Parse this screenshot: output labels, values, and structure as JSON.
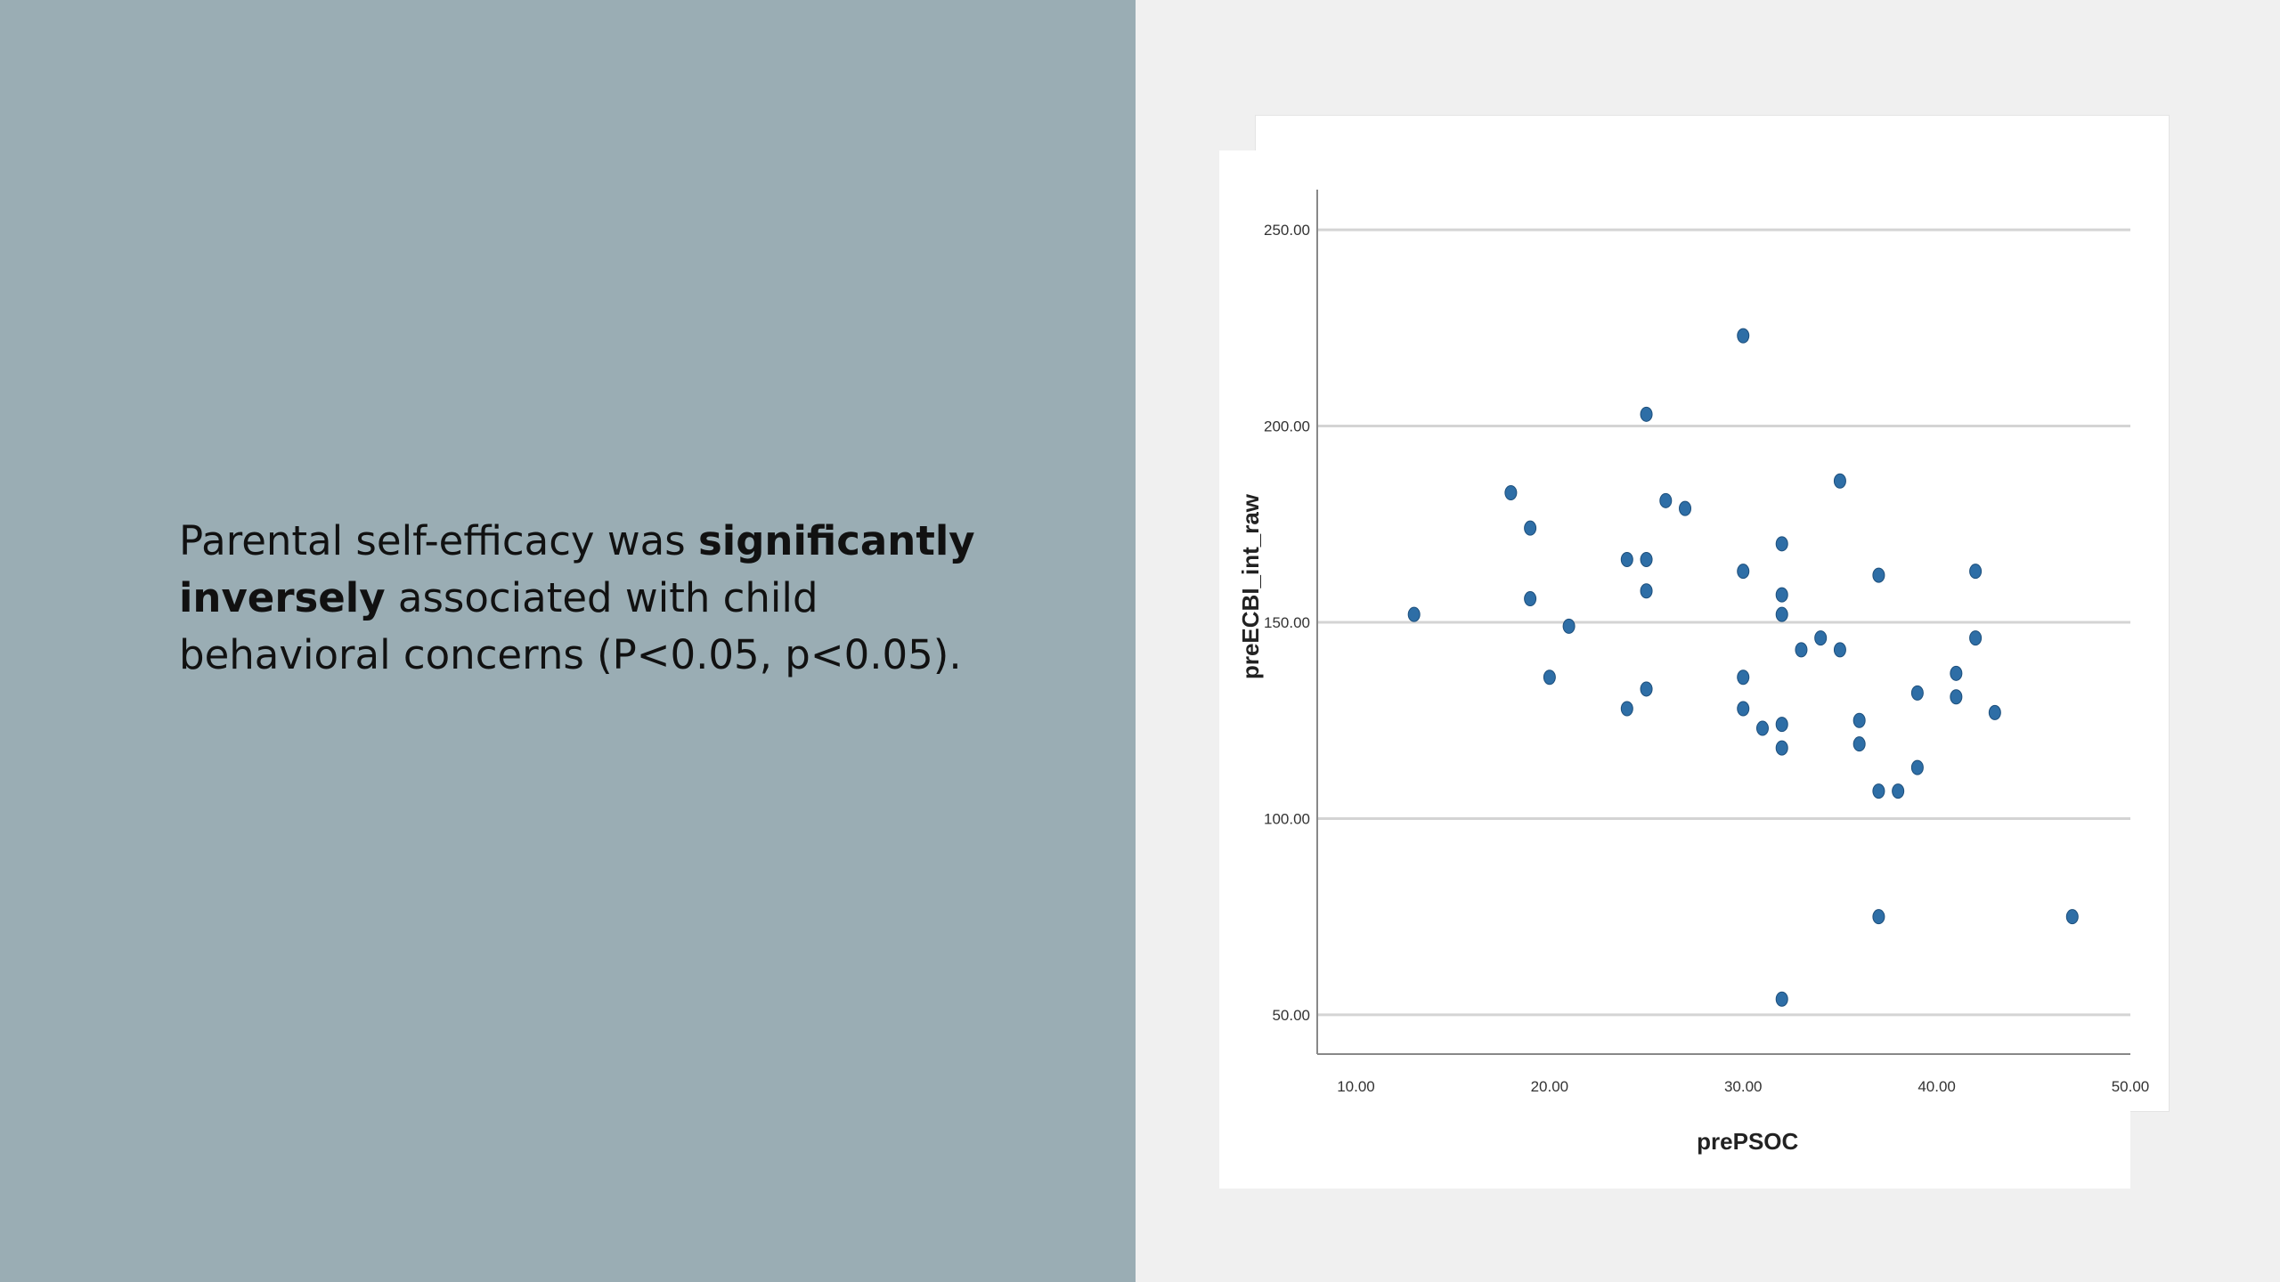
{
  "slide": {
    "text_before_bold_1": "Parental self-efficacy was ",
    "bold_1": "significantly",
    "bold_2": "inversely",
    "text_after_bold": " associated with child behavioral concerns (P<0.05, p<0.05).",
    "panel_color": "#9aadb4"
  },
  "chart_data": {
    "type": "scatter",
    "xlabel": "prePSOC",
    "ylabel": "preECBI_int_raw",
    "xlim": [
      8,
      50
    ],
    "ylim": [
      40,
      260
    ],
    "xticks": [
      10,
      20,
      30,
      40,
      50
    ],
    "xtick_labels": [
      "10.00",
      "20.00",
      "30.00",
      "40.00",
      "50.00"
    ],
    "yticks": [
      50,
      100,
      150,
      200,
      250
    ],
    "ytick_labels": [
      "50.00",
      "100.00",
      "150.00",
      "200.00",
      "250.00"
    ],
    "grid": "horizontal",
    "point_color": "#2e6ea6",
    "points": [
      [
        13,
        152
      ],
      [
        18,
        183
      ],
      [
        19,
        174
      ],
      [
        19,
        156
      ],
      [
        20,
        136
      ],
      [
        21,
        149
      ],
      [
        24,
        166
      ],
      [
        24,
        128
      ],
      [
        25,
        203
      ],
      [
        25,
        166
      ],
      [
        25,
        158
      ],
      [
        25,
        133
      ],
      [
        26,
        181
      ],
      [
        27,
        179
      ],
      [
        30,
        223
      ],
      [
        30,
        163
      ],
      [
        30,
        136
      ],
      [
        30,
        128
      ],
      [
        31,
        123
      ],
      [
        32,
        170
      ],
      [
        32,
        157
      ],
      [
        32,
        152
      ],
      [
        32,
        124
      ],
      [
        32,
        118
      ],
      [
        32,
        54
      ],
      [
        33,
        143
      ],
      [
        34,
        146
      ],
      [
        35,
        186
      ],
      [
        35,
        143
      ],
      [
        36,
        125
      ],
      [
        36,
        119
      ],
      [
        37,
        162
      ],
      [
        37,
        107
      ],
      [
        37,
        75
      ],
      [
        38,
        107
      ],
      [
        39,
        132
      ],
      [
        39,
        113
      ],
      [
        41,
        137
      ],
      [
        41,
        131
      ],
      [
        42,
        163
      ],
      [
        42,
        146
      ],
      [
        43,
        127
      ],
      [
        47,
        75
      ]
    ]
  }
}
